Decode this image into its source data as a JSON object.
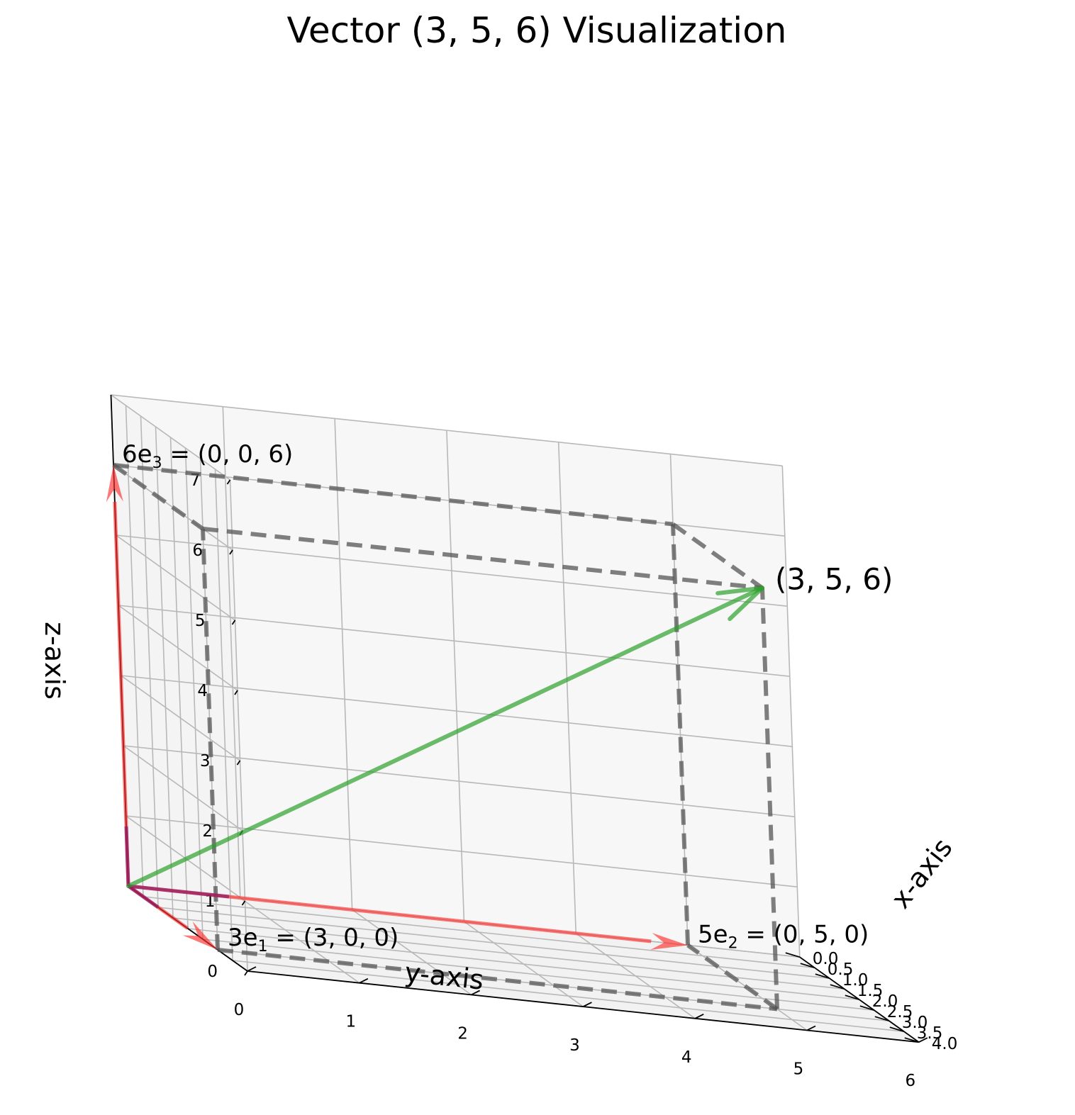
{
  "chart_data": {
    "type": "3d-vector",
    "title": "Vector (3, 5, 6) Visualization",
    "xlabel": "x-axis",
    "ylabel": "y-axis",
    "zlabel": "z-axis",
    "xlim": [
      0,
      4
    ],
    "ylim": [
      0,
      6
    ],
    "zlim": [
      0,
      7
    ],
    "x_ticks": [
      "0.0",
      "0.5",
      "1.0",
      "1.5",
      "2.0",
      "2.5",
      "3.0",
      "3.5",
      "4.0"
    ],
    "y_ticks": [
      "0",
      "1",
      "2",
      "3",
      "4",
      "5",
      "6"
    ],
    "z_ticks": [
      "0",
      "1",
      "2",
      "3",
      "4",
      "5",
      "6",
      "7"
    ],
    "grid": true,
    "vector": [
      3,
      5,
      6
    ],
    "vector_label": "(3, 5, 6)",
    "vector_color": "#2ca02c",
    "components": [
      {
        "prefix": "3",
        "sub": "1",
        "value": "(3, 0, 0)",
        "end": [
          3,
          0,
          0
        ]
      },
      {
        "prefix": "5",
        "sub": "2",
        "value": "(0, 5, 0)",
        "end": [
          0,
          5,
          0
        ]
      },
      {
        "prefix": "6",
        "sub": "3",
        "value": "(0, 0, 6)",
        "end": [
          0,
          0,
          6
        ]
      }
    ],
    "component_color": "#ff3030",
    "box_color": "#555555"
  }
}
